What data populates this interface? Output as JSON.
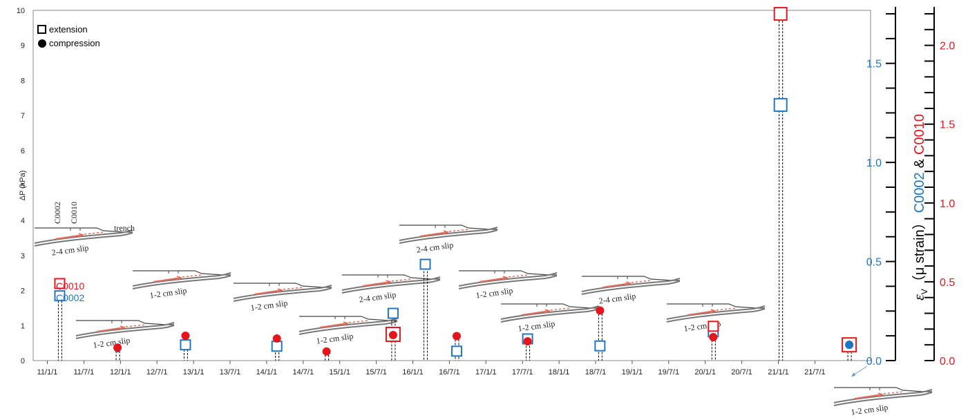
{
  "chart_data": {
    "type": "scatter",
    "left_axis": {
      "label": "ΔP (kPa)",
      "range": [
        0,
        10
      ],
      "ticks": [
        "0",
        "1",
        "2",
        "3",
        "4",
        "5",
        "6",
        "7",
        "8",
        "9",
        "10"
      ]
    },
    "x_axis": {
      "ticks": [
        "11/1/1",
        "11/7/1",
        "12/1/1",
        "12/7/1",
        "13/1/1",
        "13/7/1",
        "14/1/1",
        "14/7/1",
        "15/1/1",
        "15/7/1",
        "16/1/1",
        "16/7/1",
        "17/1/1",
        "17/7/1",
        "18/1/1",
        "18/7/1",
        "19/1/1",
        "19/7/1",
        "20/1/1",
        "20/7/1",
        "21/1/1",
        "21/7/1"
      ]
    },
    "right_axis_blue": {
      "range": [
        0,
        1.75
      ],
      "ticks": [
        "0.0",
        "0.5",
        "1.0",
        "1.5"
      ],
      "color": "#1f77c4"
    },
    "right_axis_red": {
      "range": [
        0,
        2.2
      ],
      "ticks": [
        "0.0",
        "0.5",
        "1.0",
        "1.5",
        "2.0"
      ],
      "color": "#e8141c"
    },
    "right_axis_title": {
      "epsilon": "ε",
      "sub": "V",
      "unit": "（μ strain）",
      "blue": "C0002",
      "amp": "&",
      "red": "C0010"
    },
    "legend": {
      "extension": "extension",
      "compression": "compression",
      "position": "top-left"
    },
    "station_legend": {
      "red": "C0010",
      "blue": "C0002"
    },
    "colors": {
      "C0010": "#e8141c",
      "C0002": "#1f77c4",
      "black": "#000000"
    },
    "points": [
      {
        "date": "2011.96",
        "series": "C0002",
        "marker": "circle",
        "dP": 0.33
      },
      {
        "date": "2011.96",
        "series": "C0010",
        "marker": "circle",
        "dP": 0.37
      },
      {
        "date": "2012.89",
        "series": "C0002",
        "marker": "square",
        "dP": 0.45
      },
      {
        "date": "2012.89",
        "series": "C0010",
        "marker": "circle",
        "dP": 0.71
      },
      {
        "date": "2014.14",
        "series": "C0002",
        "marker": "square",
        "dP": 0.41
      },
      {
        "date": "2014.14",
        "series": "C0010",
        "marker": "circle",
        "dP": 0.63
      },
      {
        "date": "2014.82",
        "series": "C0002",
        "marker": "circle",
        "dP": 0.26
      },
      {
        "date": "2014.82",
        "series": "C0010",
        "marker": "circle",
        "dP": 0.26
      },
      {
        "date": "2015.73",
        "series": "C0002",
        "marker": "square",
        "dP": 1.35
      },
      {
        "date": "2015.73",
        "series": "C0010",
        "marker": "square",
        "dP": 0.75
      },
      {
        "date": "2015.73",
        "series": "C0010",
        "marker": "circle",
        "dP": 0.73
      },
      {
        "date": "2016.17",
        "series": "C0002",
        "marker": "square",
        "dP": 2.75
      },
      {
        "date": "2016.60",
        "series": "C0002",
        "marker": "square",
        "dP": 0.27
      },
      {
        "date": "2016.60",
        "series": "C0010",
        "marker": "circle",
        "dP": 0.7
      },
      {
        "date": "2017.57",
        "series": "C0002",
        "marker": "square",
        "dP": 0.62
      },
      {
        "date": "2017.57",
        "series": "C0010",
        "marker": "circle",
        "dP": 0.55
      },
      {
        "date": "2018.56",
        "series": "C0002",
        "marker": "square",
        "dP": 0.42
      },
      {
        "date": "2018.56",
        "series": "C0010",
        "marker": "circle",
        "dP": 1.43
      },
      {
        "date": "2020.11",
        "series": "C0002",
        "marker": "square",
        "dP": 0.82
      },
      {
        "date": "2020.11",
        "series": "C0010",
        "marker": "square",
        "dP": 0.98
      },
      {
        "date": "2020.11",
        "series": "C0010",
        "marker": "circle",
        "dP": 0.67
      },
      {
        "date": "2021.03",
        "series": "C0002",
        "marker": "square",
        "dP": 7.3
      },
      {
        "date": "2021.03",
        "series": "C0010",
        "marker": "square",
        "dP": 9.9
      },
      {
        "date": "2021.97",
        "series": "C0010",
        "marker": "square",
        "dP": 0.45
      },
      {
        "date": "2021.97",
        "series": "C0010",
        "marker": "circle",
        "dP": 0.45
      },
      {
        "date": "2021.97",
        "series": "C0002",
        "marker": "circle",
        "dP": 0.45
      },
      {
        "date": "2011.17",
        "series": "C0010",
        "marker": "square",
        "dP": 2.2
      },
      {
        "date": "2011.17",
        "series": "C0002",
        "marker": "square",
        "dP": 1.85
      }
    ],
    "insets": [
      {
        "label": "2-4 cm slip",
        "well1": "C0002",
        "well2": "C0010",
        "trench": "trench"
      },
      {
        "label": "1-2 cm slip"
      },
      {
        "label": "1-2 cm slip"
      },
      {
        "label": "1-2 cm slip"
      },
      {
        "label": "1-2 cm slip"
      },
      {
        "label": "2-4 cm slip"
      },
      {
        "label": "2-4 cm slip"
      },
      {
        "label": "1-2 cm slip"
      },
      {
        "label": "1-2 cm slip"
      },
      {
        "label": "2-4 cm slip"
      },
      {
        "label": "1-2 cm slip"
      },
      {
        "label": "1-2 cm slip"
      }
    ]
  }
}
